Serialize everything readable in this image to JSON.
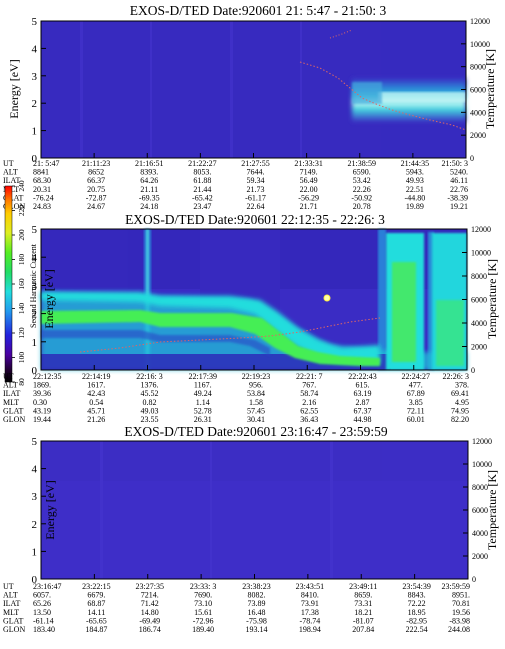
{
  "chart_data": [
    {
      "type": "heatmap",
      "title": "EXOS-D/TED   Date:920601  21: 5:47 - 21:50: 3",
      "ylabel": "Energy [eV]",
      "ylabel_right": "Temperature [K]",
      "ylim": [
        0,
        5
      ],
      "yticks": [
        "0",
        "1",
        "2",
        "3",
        "4",
        "5"
      ],
      "ylim_right": [
        0,
        12000
      ],
      "yticks_right": [
        "0",
        "2000",
        "4000",
        "6000",
        "8000",
        "10000",
        "12000"
      ],
      "table_rows": [
        "UT",
        "ALT",
        "ILAT",
        "MLT",
        "GLAT",
        "GLON"
      ],
      "columns": [
        [
          "21: 5:47",
          "8841",
          "68.30",
          "20.31",
          "-76.24",
          "24.83"
        ],
        [
          "21:11:23",
          "8652",
          "66.37",
          "20.75",
          "-72.87",
          "24.67"
        ],
        [
          "21:16:51",
          "8393.",
          "64.26",
          "21.11",
          "-69.35",
          "24.18"
        ],
        [
          "21:22:27",
          "8053.",
          "61.88",
          "21.44",
          "-65.42",
          "23.47"
        ],
        [
          "21:27:55",
          "7644.",
          "59.34",
          "21.73",
          "-61.17",
          "22.64"
        ],
        [
          "21:33:31",
          "7149.",
          "56.49",
          "22.00",
          "-56.29",
          "21.71"
        ],
        [
          "21:38:59",
          "6590.",
          "53.42",
          "22.26",
          "-50.92",
          "20.78"
        ],
        [
          "21:44:35",
          "5943.",
          "49.93",
          "22.51",
          "-44.80",
          "19.89"
        ],
        [
          "21:50: 3",
          "5240.",
          "46.11",
          "22.76",
          "-38.39",
          "19.21"
        ]
      ]
    },
    {
      "type": "heatmap",
      "title": "EXOS-D/TED   Date:920601  22:12:35 - 22:26: 3",
      "ylabel": "Energy [eV]",
      "ylabel_right": "Temperature [K]",
      "ylim": [
        0,
        5
      ],
      "yticks": [
        "0",
        "1",
        "2",
        "3",
        "4",
        "5"
      ],
      "ylim_right": [
        0,
        12000
      ],
      "yticks_right": [
        "0",
        "2000",
        "4000",
        "6000",
        "8000",
        "10000",
        "12000"
      ],
      "colorbar": {
        "label": "Second Harmonic Current",
        "ticks": [
          "80",
          "100",
          "120",
          "140",
          "160",
          "180",
          "200",
          "220",
          "240"
        ]
      },
      "table_rows": [
        "UT",
        "ALT",
        "ILAT",
        "MLT",
        "GLAT",
        "GLON"
      ],
      "columns": [
        [
          "22:12:35",
          "1869.",
          "39.36",
          "0.30",
          "43.19",
          "19.44"
        ],
        [
          "22:14:19",
          "1617.",
          "42.43",
          "0.54",
          "45.71",
          "21.26"
        ],
        [
          "22:16: 3",
          "1376.",
          "45.52",
          "0.82",
          "49.03",
          "23.55"
        ],
        [
          "22:17:39",
          "1167.",
          "49.24",
          "1.14",
          "52.78",
          "26.31"
        ],
        [
          "22:19:23",
          "956.",
          "53.84",
          "1.58",
          "57.45",
          "30.41"
        ],
        [
          "22:21: 7",
          "767.",
          "58.74",
          "2.16",
          "62.55",
          "36.43"
        ],
        [
          "22:22:43",
          "615.",
          "63.19",
          "2.87",
          "67.37",
          "44.98"
        ],
        [
          "22:24:27",
          "477.",
          "67.89",
          "3.85",
          "72.11",
          "60.01"
        ],
        [
          "22:26: 3",
          "378.",
          "69.41",
          "4.95",
          "74.95",
          "82.20"
        ]
      ]
    },
    {
      "type": "heatmap",
      "title": "EXOS-D/TED   Date:920601  23:16:47 - 23:59:59",
      "ylabel": "Energy [eV]",
      "ylabel_right": "Temperature [K]",
      "ylim": [
        0,
        5
      ],
      "yticks": [
        "0",
        "1",
        "2",
        "3",
        "4",
        "5"
      ],
      "ylim_right": [
        0,
        12000
      ],
      "yticks_right": [
        "0",
        "2000",
        "4000",
        "6000",
        "8000",
        "10000",
        "12000"
      ],
      "table_rows": [
        "UT",
        "ALT",
        "ILAT",
        "MLT",
        "GLAT",
        "GLON"
      ],
      "columns": [
        [
          "23:16:47",
          "6057.",
          "6679.",
          "7214.",
          "7690.",
          "8082.",
          "8410.",
          "8659.",
          "8843.",
          "8951."
        ],
        [
          "23:22:15",
          "65.26",
          "68.87",
          "71.42",
          "73.10",
          "73.89",
          "73.91",
          "73.31",
          "72.22",
          "70.81"
        ],
        [
          "23:27:35",
          "13.50",
          "14.11",
          "14.80",
          "15.61",
          "16.48",
          "17.38",
          "18.21",
          "18.95",
          "19.56"
        ],
        [
          "23:33: 3",
          "-61.14",
          "-65.65",
          "-69.49",
          "-72.96",
          "-75.98",
          "-78.74",
          "-81.07",
          "-82.95",
          "-83.98"
        ],
        [
          "23:38:23",
          "183.40",
          "184.87",
          "186.74",
          "189.40",
          "193.14",
          "198.94",
          "207.84",
          "222.54",
          "244.08"
        ],
        [
          "23:43:51",
          "",
          "",
          "",
          "",
          "",
          "",
          "",
          "",
          ""
        ],
        [
          "23:49:11",
          "",
          "",
          "",
          "",
          "",
          "",
          "",
          "",
          ""
        ],
        [
          "23:54:39",
          "",
          "",
          "",
          "",
          "",
          "",
          "",
          "",
          ""
        ],
        [
          "23:59:59",
          "",
          "",
          "",
          "",
          "",
          "",
          "",
          "",
          ""
        ]
      ],
      "ut": [
        "23:16:47",
        "23:22:15",
        "23:27:35",
        "23:33: 3",
        "23:38:23",
        "23:43:51",
        "23:49:11",
        "23:54:39",
        "23:59:59"
      ],
      "rows_values": {
        "ALT": [
          "6057.",
          "6679.",
          "7214.",
          "7690.",
          "8082.",
          "8410.",
          "8659.",
          "8843.",
          "8951."
        ],
        "ILAT": [
          "65.26",
          "68.87",
          "71.42",
          "73.10",
          "73.89",
          "73.91",
          "73.31",
          "72.22",
          "70.81"
        ],
        "MLT": [
          "13.50",
          "14.11",
          "14.80",
          "15.61",
          "16.48",
          "17.38",
          "18.21",
          "18.95",
          "19.56"
        ],
        "GLAT": [
          "-61.14",
          "-65.65",
          "-69.49",
          "-72.96",
          "-75.98",
          "-78.74",
          "-81.07",
          "-82.95",
          "-83.98"
        ],
        "GLON": [
          "183.40",
          "184.87",
          "186.74",
          "189.40",
          "193.14",
          "198.94",
          "207.84",
          "222.54",
          "244.08"
        ]
      }
    }
  ],
  "colors": {
    "background_low": "#3a2cc4",
    "band_cyan": "#22dddd",
    "band_green": "#44ee44",
    "band_light": "#bff3f3"
  }
}
